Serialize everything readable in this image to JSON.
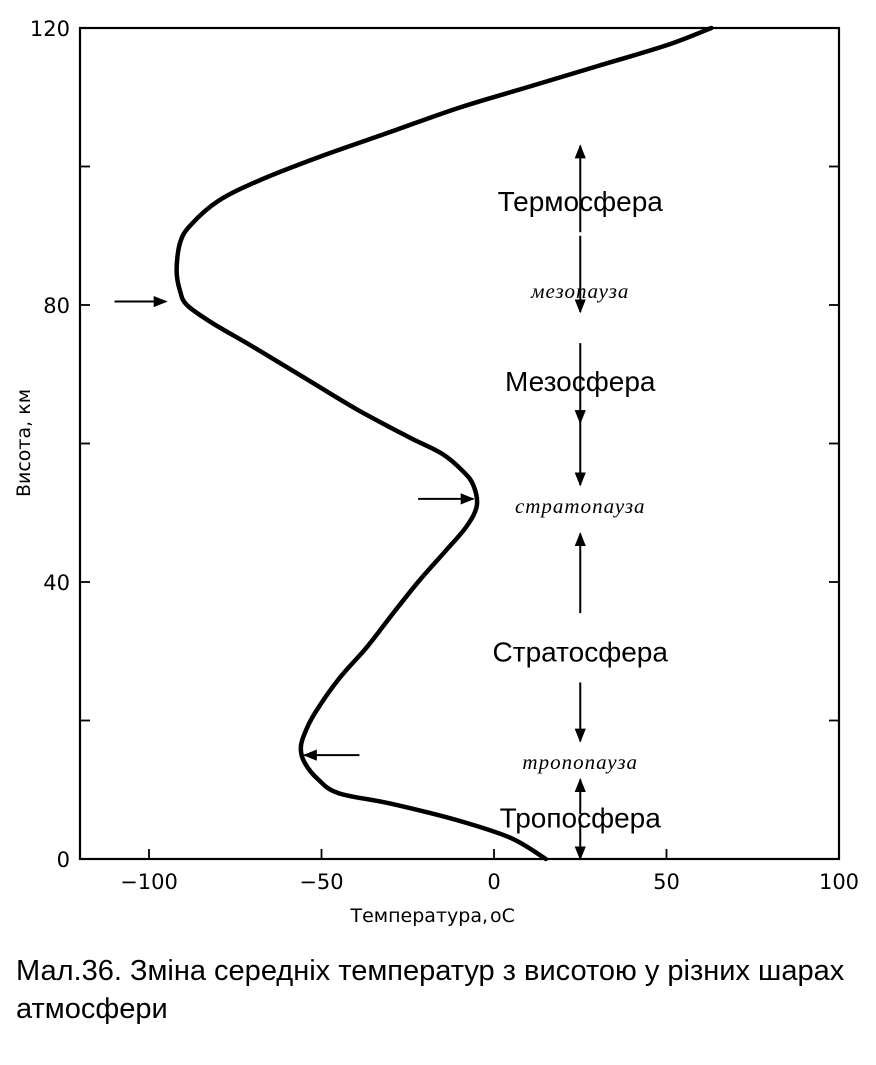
{
  "chart_data": {
    "type": "line",
    "xlabel": "Температура, ",
    "xlabel_unit": "oC",
    "ylabel": "Висота, км",
    "xlim": [
      -120,
      100
    ],
    "ylim": [
      0,
      120
    ],
    "x_ticks": [
      -100,
      -50,
      0,
      50,
      100
    ],
    "x_tick_labels": [
      "−100",
      "−50",
      "0",
      "50",
      "100"
    ],
    "y_ticks": [
      0,
      40,
      80,
      120
    ],
    "y_tick_labels": [
      "0",
      "40",
      "80",
      "120"
    ],
    "y_minor_ticks": [
      20,
      60,
      100
    ],
    "series": [
      {
        "points": [
          [
            15,
            0
          ],
          [
            5,
            3
          ],
          [
            -10,
            5.5
          ],
          [
            -30,
            8
          ],
          [
            -45,
            9.5
          ],
          [
            -51,
            11.5
          ],
          [
            -55,
            14
          ],
          [
            -56,
            16
          ],
          [
            -55,
            18
          ],
          [
            -52,
            21
          ],
          [
            -45,
            26
          ],
          [
            -37,
            30.5
          ],
          [
            -30,
            35
          ],
          [
            -22,
            40
          ],
          [
            -14,
            44.5
          ],
          [
            -8,
            48
          ],
          [
            -5,
            51
          ],
          [
            -6,
            54
          ],
          [
            -9,
            56
          ],
          [
            -15,
            58.5
          ],
          [
            -25,
            61
          ],
          [
            -40,
            65
          ],
          [
            -55,
            69.5
          ],
          [
            -70,
            74
          ],
          [
            -82,
            77.5
          ],
          [
            -89,
            80
          ],
          [
            -91,
            82
          ],
          [
            -92,
            85
          ],
          [
            -91,
            89
          ],
          [
            -88,
            91.5
          ],
          [
            -80,
            95
          ],
          [
            -68,
            98
          ],
          [
            -50,
            101.5
          ],
          [
            -30,
            105
          ],
          [
            -10,
            108.5
          ],
          [
            10,
            111.5
          ],
          [
            30,
            114.5
          ],
          [
            50,
            117.5
          ],
          [
            63,
            120
          ]
        ]
      }
    ],
    "layers": [
      {
        "label": "Термосфера",
        "x": 25,
        "y": 95,
        "style": "regular"
      },
      {
        "label": "мезопауза",
        "x": 25,
        "y": 82,
        "style": "italic"
      },
      {
        "label": "Мезосфера",
        "x": 25,
        "y": 69,
        "style": "regular"
      },
      {
        "label": "стратопауза",
        "x": 25,
        "y": 51,
        "style": "italic"
      },
      {
        "label": "Стратосфера",
        "x": 25,
        "y": 30,
        "style": "regular"
      },
      {
        "label": "тропопауза",
        "x": 25,
        "y": 14,
        "style": "italic"
      },
      {
        "label": "Тропосфера",
        "x": 25,
        "y": 6,
        "style": "regular"
      }
    ],
    "layer_arrows": [
      {
        "x": 25,
        "from": 90.5,
        "to": 103
      },
      {
        "x": 25,
        "from": 90,
        "to": 79
      },
      {
        "x": 25,
        "from": 74.5,
        "to": 63
      },
      {
        "x": 25,
        "from": 64,
        "to": 54
      },
      {
        "x": 25,
        "from": 35.5,
        "to": 47
      },
      {
        "x": 25,
        "from": 25.5,
        "to": 17
      },
      {
        "x": 25,
        "from": 6.5,
        "to": 11.5
      },
      {
        "x": 25,
        "from": 5.5,
        "to": 0
      }
    ],
    "pointer_arrows": [
      {
        "from": [
          -110,
          80.5
        ],
        "to": [
          -95,
          80.5
        ]
      },
      {
        "from": [
          -22,
          52
        ],
        "to": [
          -6,
          52
        ]
      },
      {
        "from": [
          -39,
          15
        ],
        "to": [
          -55,
          15
        ]
      }
    ]
  },
  "caption": "Мал.36. Зміна середніх температур з висотою у різних шарах атмосфери"
}
